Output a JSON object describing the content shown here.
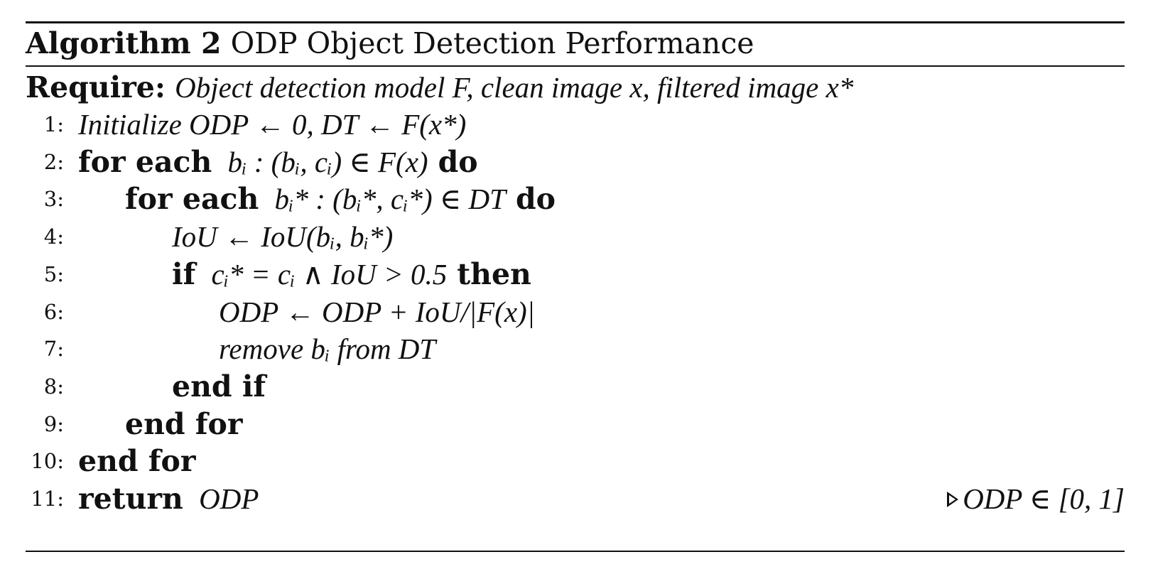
{
  "algorithm": {
    "label": "Algorithm 2",
    "title": "ODP Object Detection Performance",
    "require_label": "Require:",
    "require_text": "Object detection model F, clean image x, filtered image x*"
  },
  "lines": [
    {
      "num": "1:",
      "keyword": "",
      "text": "Initialize ODP ← 0, DT ← F(x*)",
      "keyword_end": ""
    },
    {
      "num": "2:",
      "keyword": "for each",
      "text": "bᵢ : (bᵢ, cᵢ) ∈ F(x)",
      "keyword_end": "do"
    },
    {
      "num": "3:",
      "keyword": "for each",
      "text": "bᵢ* : (bᵢ*, cᵢ*) ∈ DT",
      "keyword_end": "do"
    },
    {
      "num": "4:",
      "keyword": "",
      "text": "IoU ← IoU(bᵢ, bᵢ*)",
      "keyword_end": ""
    },
    {
      "num": "5:",
      "keyword": "if",
      "text": "cᵢ* = cᵢ ∧ IoU > 0.5",
      "keyword_end": "then"
    },
    {
      "num": "6:",
      "keyword": "",
      "text": "ODP ← ODP + IoU/|F(x)|",
      "keyword_end": ""
    },
    {
      "num": "7:",
      "keyword": "",
      "text": "remove bᵢ from DT",
      "keyword_end": ""
    },
    {
      "num": "8:",
      "keyword": "end if",
      "text": "",
      "keyword_end": ""
    },
    {
      "num": "9:",
      "keyword": "end for",
      "text": "",
      "keyword_end": ""
    },
    {
      "num": "10:",
      "keyword": "end for",
      "text": "",
      "keyword_end": ""
    },
    {
      "num": "11:",
      "keyword": "return",
      "text": "ODP",
      "keyword_end": ""
    }
  ],
  "comment": "ODP ∈ [0, 1]"
}
